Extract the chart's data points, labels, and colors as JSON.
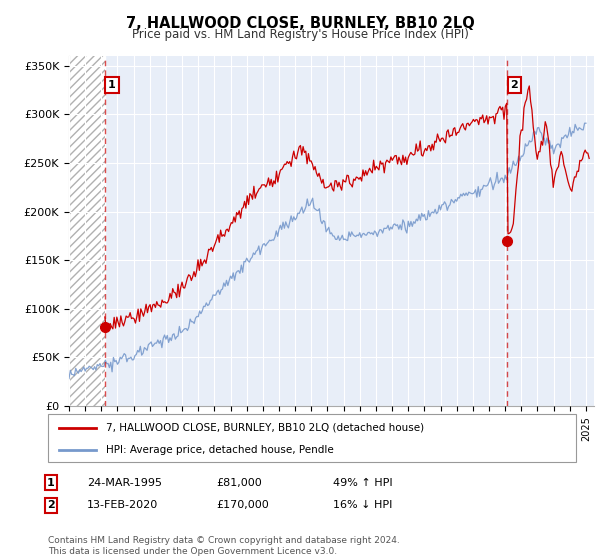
{
  "title": "7, HALLWOOD CLOSE, BURNLEY, BB10 2LQ",
  "subtitle": "Price paid vs. HM Land Registry's House Price Index (HPI)",
  "ylabel_ticks": [
    "£0",
    "£50K",
    "£100K",
    "£150K",
    "£200K",
    "£250K",
    "£300K",
    "£350K"
  ],
  "ylim": [
    0,
    360000
  ],
  "xlim_start": 1993.0,
  "xlim_end": 2025.5,
  "sale1_date": 1995.22,
  "sale1_price": 81000,
  "sale1_label": "1",
  "sale2_date": 2020.12,
  "sale2_price": 170000,
  "sale2_label": "2",
  "red_color": "#cc0000",
  "blue_color": "#7799cc",
  "bg_color": "#e8eef8",
  "legend_line1": "7, HALLWOOD CLOSE, BURNLEY, BB10 2LQ (detached house)",
  "legend_line2": "HPI: Average price, detached house, Pendle",
  "table_row1": [
    "1",
    "24-MAR-1995",
    "£81,000",
    "49% ↑ HPI"
  ],
  "table_row2": [
    "2",
    "13-FEB-2020",
    "£170,000",
    "16% ↓ HPI"
  ],
  "footer": "Contains HM Land Registry data © Crown copyright and database right 2024.\nThis data is licensed under the Open Government Licence v3.0."
}
